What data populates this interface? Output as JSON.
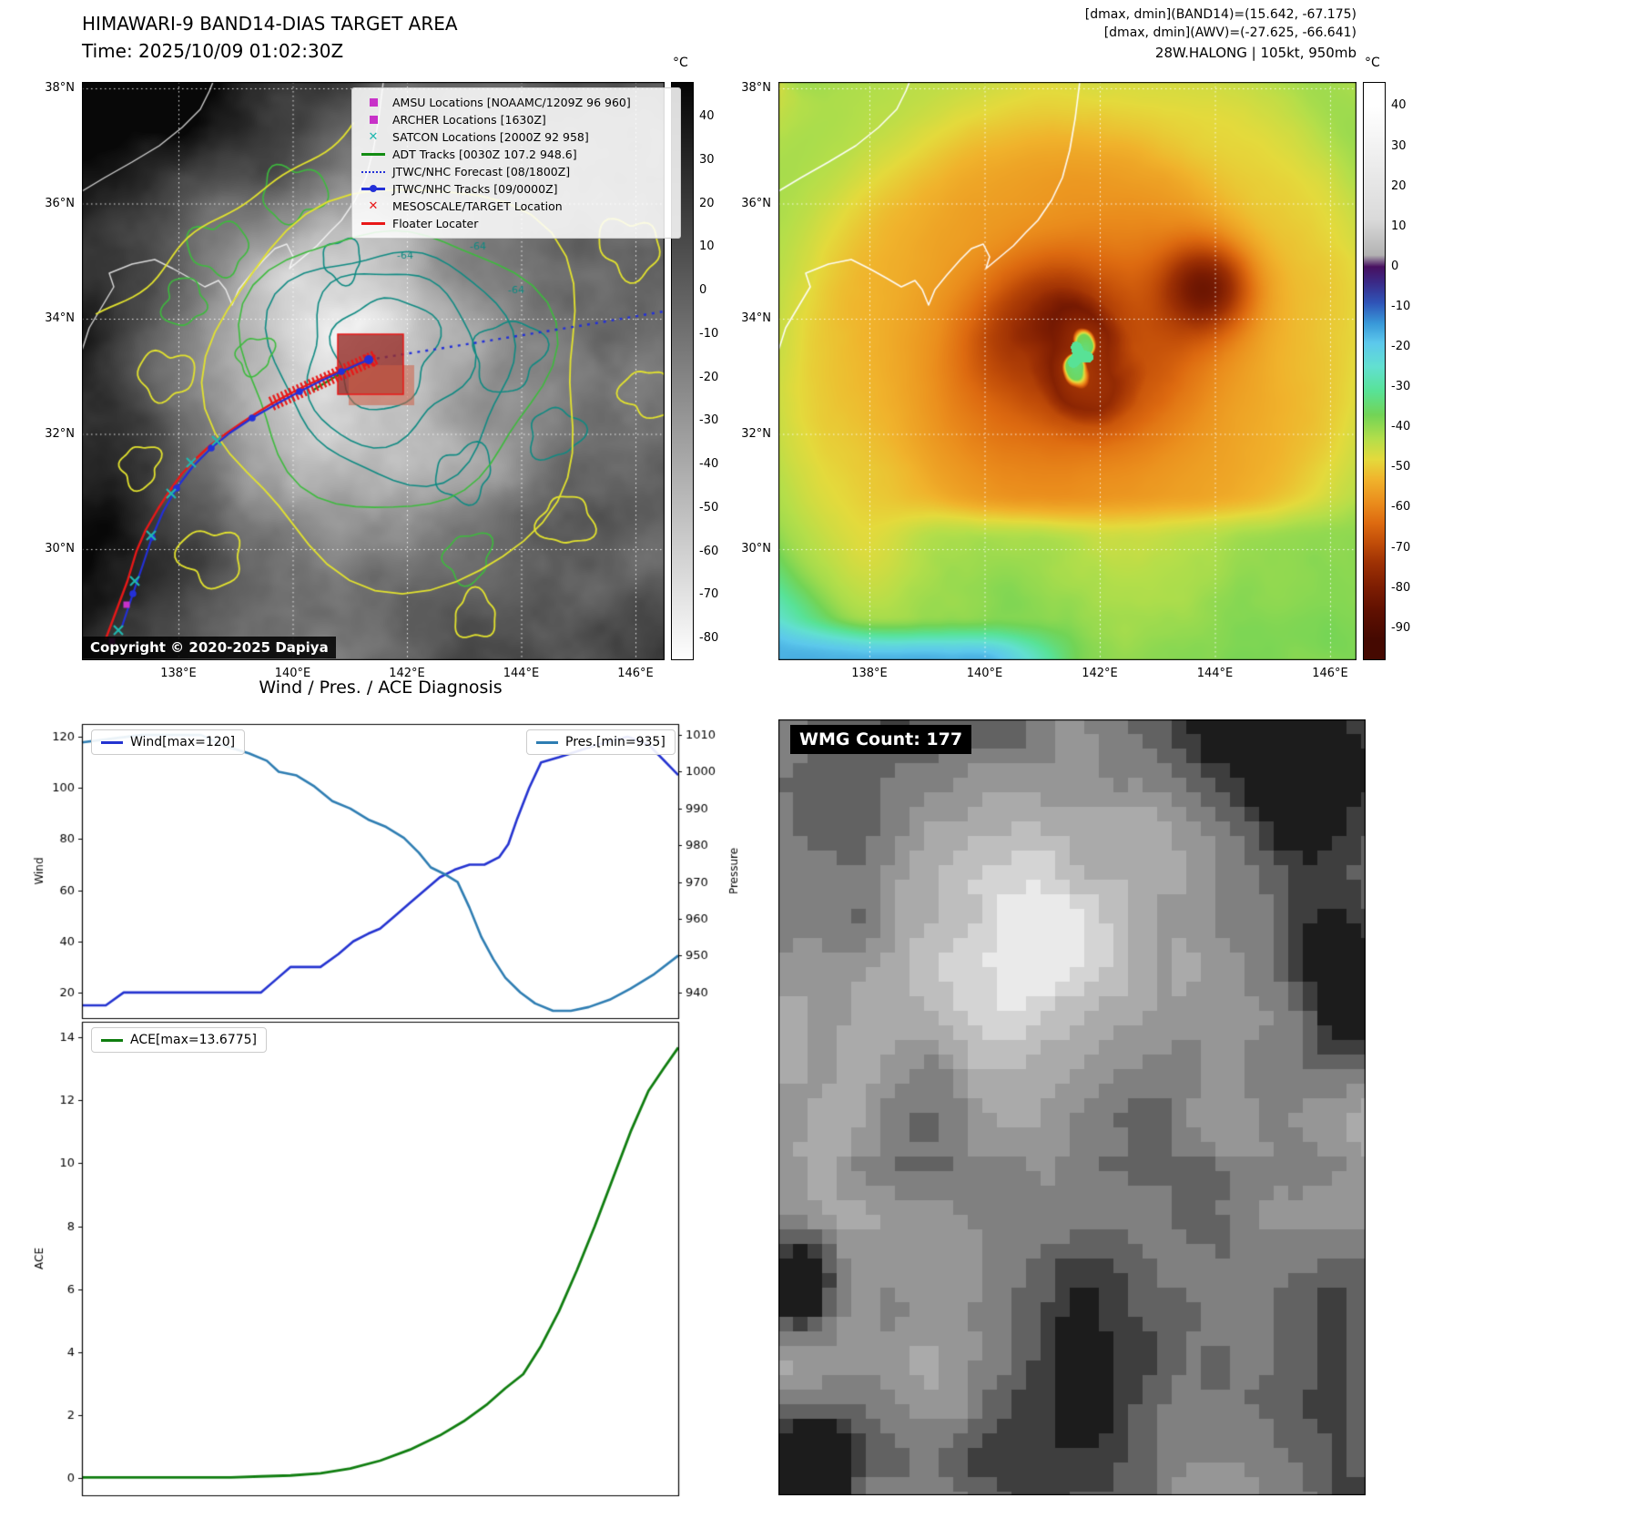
{
  "band14": {
    "title": "HIMAWARI-9 BAND14-DIAS TARGET AREA",
    "time": "Time: 2025/10/09 01:02:30Z",
    "copyright": "Copyright © 2020-2025 Dapiya",
    "colorbar_unit": "°C",
    "colorbar_ticks": [
      40,
      30,
      20,
      10,
      0,
      -10,
      -20,
      -30,
      -40,
      -50,
      -60,
      -70,
      -80
    ],
    "colorbar_colors": [
      "#050505",
      "#fefefe"
    ],
    "lat_ticks": [
      "38°N",
      "36°N",
      "34°N",
      "32°N",
      "30°N"
    ],
    "lon_ticks": [
      "138°E",
      "140°E",
      "142°E",
      "144°E",
      "146°E"
    ],
    "contour_labels": [
      "-64",
      "-64",
      "-64"
    ],
    "legend": [
      {
        "label": "AMSU Locations [NOAAMC/1209Z 96 960]",
        "marker": "square",
        "color": "#c832c8"
      },
      {
        "label": "ARCHER Locations [1630Z]",
        "marker": "square",
        "color": "#c832c8"
      },
      {
        "label": "SATCON Locations [2000Z 92 958]",
        "marker": "x",
        "color": "#20b8b0"
      },
      {
        "label": "ADT Tracks [0030Z 107.2 948.6]",
        "marker": "line",
        "color": "#128c12"
      },
      {
        "label": "JTWC/NHC Forecast [08/1800Z]",
        "marker": "dotted",
        "color": "#2330d8"
      },
      {
        "label": "JTWC/NHC Tracks [09/0000Z]",
        "marker": "linedot",
        "color": "#2330d8"
      },
      {
        "label": "MESOSCALE/TARGET Location",
        "marker": "x",
        "color": "#e81818"
      },
      {
        "label": "Floater Locater",
        "marker": "line",
        "color": "#e81818"
      }
    ]
  },
  "awv": {
    "header_lines": [
      "[dmax, dmin](BAND14)=(15.642, -67.175)",
      "[dmax, dmin](AWV)=(-27.625, -66.641)",
      "28W.HALONG | 105kt, 950mb"
    ],
    "colorbar_unit": "°C",
    "colorbar_ticks": [
      40,
      30,
      20,
      10,
      0,
      -10,
      -20,
      -30,
      -40,
      -50,
      -60,
      -70,
      -80,
      -90
    ],
    "colorbar_stops": [
      {
        "t": 40,
        "c": "#ffffff"
      },
      {
        "t": 12,
        "c": "#dadada"
      },
      {
        "t": 3,
        "c": "#b2b2b2"
      },
      {
        "t": 0,
        "c": "#481060"
      },
      {
        "t": -4,
        "c": "#3a2a88"
      },
      {
        "t": -9,
        "c": "#2f55b8"
      },
      {
        "t": -14,
        "c": "#3898d8"
      },
      {
        "t": -19,
        "c": "#5cc8ec"
      },
      {
        "t": -25,
        "c": "#62e0d0"
      },
      {
        "t": -31,
        "c": "#58e296"
      },
      {
        "t": -37,
        "c": "#72d456"
      },
      {
        "t": -43,
        "c": "#b4de4a"
      },
      {
        "t": -48,
        "c": "#e4da3c"
      },
      {
        "t": -53,
        "c": "#f0b32c"
      },
      {
        "t": -59,
        "c": "#ea8c1c"
      },
      {
        "t": -64,
        "c": "#dd6a10"
      },
      {
        "t": -69,
        "c": "#c04c08"
      },
      {
        "t": -74,
        "c": "#9e3104"
      },
      {
        "t": -80,
        "c": "#7d1d02"
      },
      {
        "t": -86,
        "c": "#5f1001"
      },
      {
        "t": -93,
        "c": "#450901"
      }
    ],
    "lat_ticks": [
      "38°N",
      "36°N",
      "34°N",
      "32°N",
      "30°N"
    ],
    "lon_ticks": [
      "138°E",
      "140°E",
      "142°E",
      "144°E",
      "146°E"
    ]
  },
  "chart_data": [
    {
      "type": "line",
      "title": "Wind / Pres. / ACE Diagnosis",
      "x_range": [
        0,
        1
      ],
      "left_axis": {
        "label": "Wind",
        "ticks": [
          20,
          40,
          60,
          80,
          100,
          120
        ],
        "range": [
          10,
          125
        ]
      },
      "right_axis": {
        "label": "Pressure",
        "ticks": [
          940,
          950,
          960,
          970,
          980,
          990,
          1000,
          1010
        ],
        "range": [
          933,
          1013
        ]
      },
      "series": [
        {
          "name": "Wind[max=120]",
          "color": "#2433d0",
          "axis": "left",
          "x": [
            0,
            0.04,
            0.07,
            0.12,
            0.18,
            0.24,
            0.3,
            0.325,
            0.35,
            0.4,
            0.43,
            0.455,
            0.48,
            0.5,
            0.525,
            0.55,
            0.575,
            0.6,
            0.625,
            0.65,
            0.675,
            0.7,
            0.715,
            0.73,
            0.75,
            0.77,
            0.8,
            0.84,
            0.88,
            0.915,
            0.95,
            1.0
          ],
          "y": [
            15,
            15,
            20,
            20,
            20,
            20,
            20,
            25,
            30,
            30,
            35,
            40,
            43,
            45,
            50,
            55,
            60,
            65,
            68,
            70,
            70,
            73,
            78,
            88,
            100,
            110,
            112,
            115,
            118,
            120,
            117,
            105
          ]
        },
        {
          "name": "Pres.[min=935]",
          "color": "#2e7db2",
          "axis": "right",
          "x": [
            0,
            0.05,
            0.1,
            0.15,
            0.2,
            0.24,
            0.28,
            0.31,
            0.33,
            0.36,
            0.39,
            0.42,
            0.45,
            0.48,
            0.51,
            0.54,
            0.565,
            0.585,
            0.61,
            0.63,
            0.65,
            0.67,
            0.69,
            0.71,
            0.735,
            0.76,
            0.79,
            0.82,
            0.85,
            0.885,
            0.92,
            0.96,
            1.0
          ],
          "y": [
            1008,
            1009,
            1010,
            1010,
            1010,
            1007,
            1005,
            1003,
            1000,
            999,
            996,
            992,
            990,
            987,
            985,
            982,
            978,
            974,
            972,
            970,
            963,
            955,
            949,
            944,
            940,
            937,
            935,
            935,
            936,
            938,
            941,
            945,
            950
          ]
        }
      ]
    },
    {
      "type": "line",
      "left_axis": {
        "label": "ACE",
        "ticks": [
          0,
          2,
          4,
          6,
          8,
          10,
          12,
          14
        ],
        "range": [
          -0.55,
          14.5
        ]
      },
      "series": [
        {
          "name": "ACE[max=13.6775]",
          "color": "#0f7d0f",
          "axis": "left",
          "x": [
            0,
            0.05,
            0.1,
            0.15,
            0.2,
            0.25,
            0.3,
            0.35,
            0.4,
            0.45,
            0.5,
            0.55,
            0.6,
            0.64,
            0.68,
            0.71,
            0.74,
            0.77,
            0.8,
            0.83,
            0.86,
            0.89,
            0.92,
            0.95,
            0.975,
            1.0
          ],
          "y": [
            0.02,
            0.02,
            0.02,
            0.02,
            0.02,
            0.02,
            0.05,
            0.08,
            0.15,
            0.3,
            0.55,
            0.9,
            1.35,
            1.8,
            2.35,
            2.85,
            3.3,
            4.2,
            5.3,
            6.6,
            8.0,
            9.5,
            11.0,
            12.3,
            13.0,
            13.6775
          ]
        }
      ]
    }
  ],
  "wmg": {
    "label": "WMG Count: 177"
  }
}
